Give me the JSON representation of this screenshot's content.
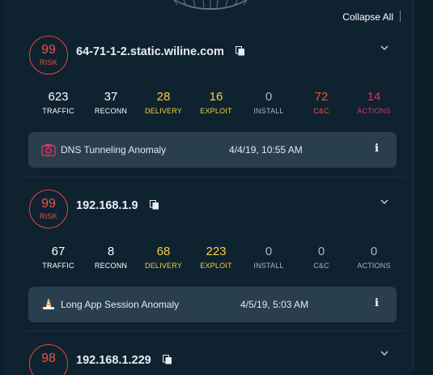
{
  "toolbar": {
    "collapse_label": "Collapse All"
  },
  "colors": {
    "risk": "#f0523f",
    "delivery": "#f4d33a",
    "cnc": "#f0523f",
    "actions": "#d9345f"
  },
  "hosts": [
    {
      "risk_value": "99",
      "risk_label": "RISK",
      "hostname": "64-71-1-2.static.wiline.com",
      "stats": [
        {
          "value": "623",
          "label": "TRAFFIC"
        },
        {
          "value": "37",
          "label": "RECONN"
        },
        {
          "value": "28",
          "label": "DELIVERY"
        },
        {
          "value": "16",
          "label": "EXPLOIT"
        },
        {
          "value": "0",
          "label": "INSTALL"
        },
        {
          "value": "72",
          "label": "C&C"
        },
        {
          "value": "14",
          "label": "ACTIONS"
        }
      ],
      "alert": {
        "icon": "camera-icon",
        "title": "DNS Tunneling Anomaly",
        "time": "4/4/19, 10:55 AM",
        "info": "i"
      }
    },
    {
      "risk_value": "99",
      "risk_label": "RISK",
      "hostname": "192.168.1.9",
      "stats": [
        {
          "value": "67",
          "label": "TRAFFIC"
        },
        {
          "value": "8",
          "label": "RECONN"
        },
        {
          "value": "68",
          "label": "DELIVERY"
        },
        {
          "value": "223",
          "label": "EXPLOIT"
        },
        {
          "value": "0",
          "label": "INSTALL"
        },
        {
          "value": "0",
          "label": "C&C"
        },
        {
          "value": "0",
          "label": "ACTIONS"
        }
      ],
      "alert": {
        "icon": "traffic-cone-icon",
        "title": "Long App Session Anomaly",
        "time": "4/5/19, 5:03 AM",
        "info": "i"
      }
    },
    {
      "risk_value": "98",
      "hostname": "192.168.1.229"
    }
  ]
}
